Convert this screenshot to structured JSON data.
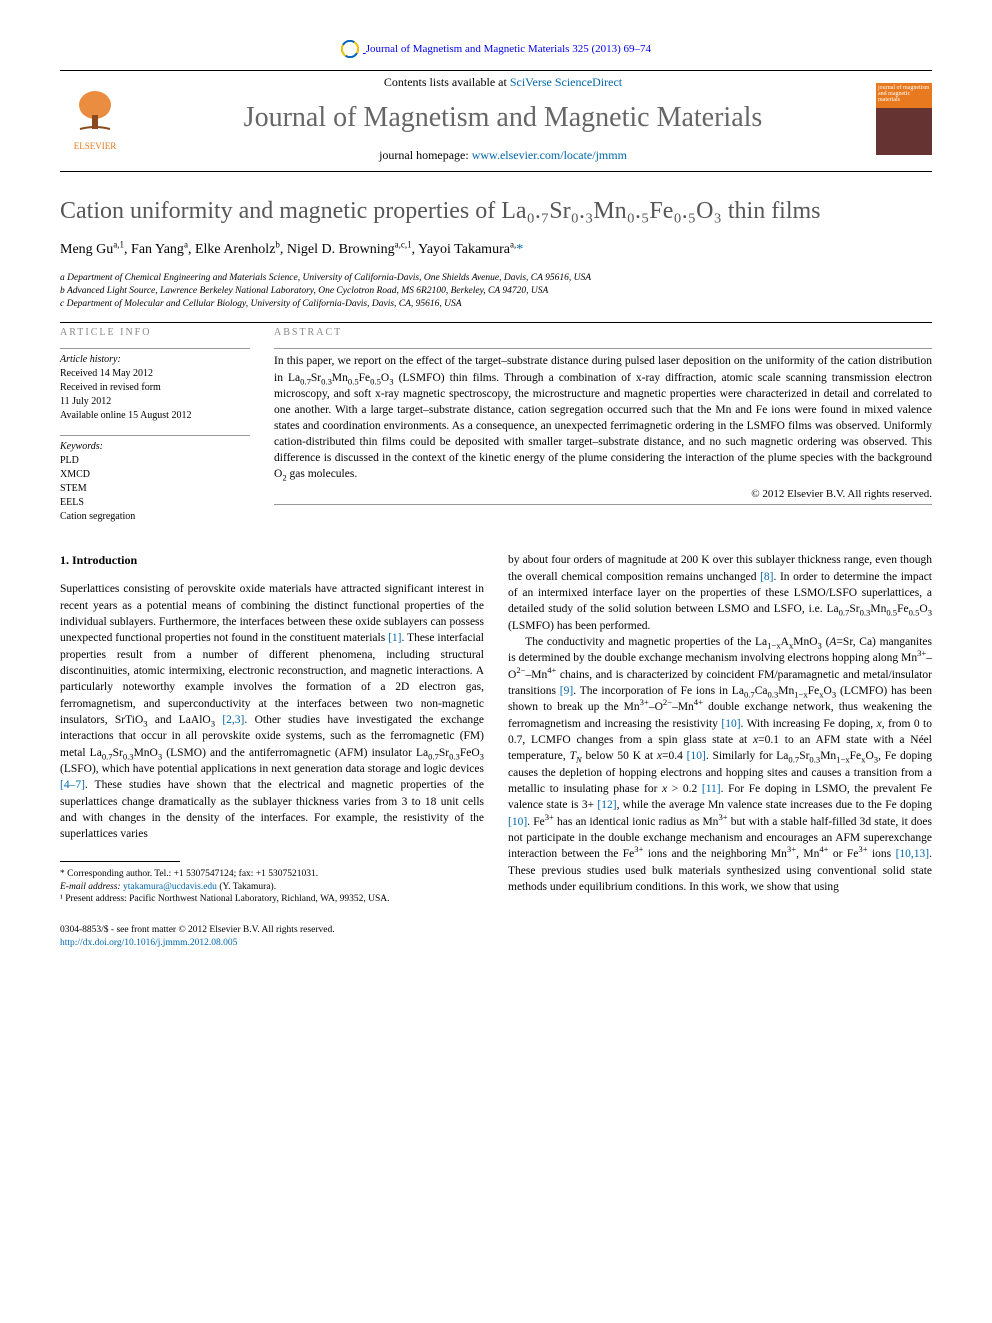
{
  "crossmark": {
    "journal_ref": "Journal of Magnetism and Magnetic Materials 325 (2013) 69–74"
  },
  "masthead": {
    "contents_prefix": "Contents lists available at ",
    "contents_link": "SciVerse ScienceDirect",
    "journal_name": "Journal of Magnetism and Magnetic Materials",
    "homepage_prefix": "journal homepage: ",
    "homepage_link": "www.elsevier.com/locate/jmmm",
    "publisher": "ELSEVIER",
    "cover_text": "journal of magnetism and magnetic materials"
  },
  "title": "Cation uniformity and magnetic properties of La₀.₇Sr₀.₃Mn₀.₅Fe₀.₅O₃ thin films",
  "authors_html": "Meng Gu<sup>a,1</sup>, Fan Yang<sup>a</sup>, Elke Arenholz<sup>b</sup>, Nigel D. Browning<sup>a,c,1</sup>, Yayoi Takamura<sup>a,</sup><a href='#'>*</a>",
  "affiliations": [
    "a Department of Chemical Engineering and Materials Science, University of California-Davis, One Shields Avenue, Davis, CA 95616, USA",
    "b Advanced Light Source, Lawrence Berkeley National Laboratory, One Cyclotron Road, MS 6R2100, Berkeley, CA 94720, USA",
    "c Department of Molecular and Cellular Biology, University of California-Davis, Davis, CA, 95616, USA"
  ],
  "info_heading": "ARTICLE INFO",
  "history": {
    "label": "Article history:",
    "received": "Received 14 May 2012",
    "revised1": "Received in revised form",
    "revised2": "11 July 2012",
    "online": "Available online 15 August 2012"
  },
  "keywords": {
    "label": "Keywords:",
    "items": [
      "PLD",
      "XMCD",
      "STEM",
      "EELS",
      "Cation segregation"
    ]
  },
  "abstract_heading": "ABSTRACT",
  "abstract_html": "In this paper, we report on the effect of the target–substrate distance during pulsed laser deposition on the uniformity of the cation distribution in La<sub>0.7</sub>Sr<sub>0.3</sub>Mn<sub>0.5</sub>Fe<sub>0.5</sub>O<sub>3</sub> (LSMFO) thin films. Through a combination of x-ray diffraction, atomic scale scanning transmission electron microscopy, and soft x-ray magnetic spectroscopy, the microstructure and magnetic properties were characterized in detail and correlated to one another. With a large target–substrate distance, cation segregation occurred such that the Mn and Fe ions were found in mixed valence states and coordination environments. As a consequence, an unexpected ferrimagnetic ordering in the LSMFO films was observed. Uniformly cation-distributed thin films could be deposited with smaller target–substrate distance, and no such magnetic ordering was observed. This difference is discussed in the context of the kinetic energy of the plume considering the interaction of the plume species with the background O<sub>2</sub> gas molecules.",
  "copyright": "© 2012 Elsevier B.V. All rights reserved.",
  "section_heading": "1.  Introduction",
  "left_col_html": "Superlattices consisting of perovskite oxide materials have attracted significant interest in recent years as a potential means of combining the distinct functional properties of the individual sublayers. Furthermore, the interfaces between these oxide sublayers can possess unexpected functional properties not found in the constituent materials <a class='ref-link' href='#'>[1]</a>. These interfacial properties result from a number of different phenomena, including structural discontinuities, atomic intermixing, electronic reconstruction, and magnetic interactions. A particularly noteworthy example involves the formation of a 2D electron gas, ferromagnetism, and superconductivity at the interfaces between two non-magnetic insulators, SrTiO<sub>3</sub> and LaAlO<sub>3</sub> <a class='ref-link' href='#'>[2,3]</a>. Other studies have investigated the exchange interactions that occur in all perovskite oxide systems, such as the ferromagnetic (FM) metal La<sub>0.7</sub>Sr<sub>0.3</sub>MnO<sub>3</sub> (LSMO) and the antiferromagnetic (AFM) insulator La<sub>0.7</sub>Sr<sub>0.3</sub>FeO<sub>3</sub> (LSFO), which have potential applications in next generation data storage and logic devices <a class='ref-link' href='#'>[4–7]</a>. These studies have shown that the electrical and magnetic properties of the superlattices change dramatically as the sublayer thickness varies from 3 to 18 unit cells and with changes in the density of the interfaces. For example, the resistivity of the superlattices varies",
  "right_col_p1_html": "by about four orders of magnitude at 200 K over this sublayer thickness range, even though the overall chemical composition remains unchanged <a class='ref-link' href='#'>[8]</a>. In order to determine the impact of an intermixed interface layer on the properties of these LSMO/LSFO superlattices, a detailed study of the solid solution between LSMO and LSFO, i.e. La<sub>0.7</sub>Sr<sub>0.3</sub>Mn<sub>0.5</sub>Fe<sub>0.5</sub>O<sub>3</sub> (LSMFO) has been performed.",
  "right_col_p2_html": "The conductivity and magnetic properties of the La<sub>1−x</sub>A<sub>x</sub>MnO<sub>3</sub> (<i>A</i>=Sr, Ca) manganites is determined by the double exchange mechanism involving electrons hopping along Mn<sup>3+</sup>–O<sup>2−</sup>–Mn<sup>4+</sup> chains, and is characterized by coincident FM/paramagnetic and metal/insulator transitions <a class='ref-link' href='#'>[9]</a>. The incorporation of Fe ions in La<sub>0.7</sub>Ca<sub>0.3</sub>Mn<sub>1−x</sub>Fe<sub>x</sub>O<sub>3</sub> (LCMFO) has been shown to break up the Mn<sup>3+</sup>–O<sup>2−</sup>–Mn<sup>4+</sup> double exchange network, thus weakening the ferromagnetism and increasing the resistivity <a class='ref-link' href='#'>[10]</a>. With increasing Fe doping, <i>x</i>, from 0 to 0.7, LCMFO changes from a spin glass state at <i>x</i>=0.1 to an AFM state with a Néel temperature, <i>T<sub>N</sub></i> below 50 K at <i>x</i>=0.4 <a class='ref-link' href='#'>[10]</a>. Similarly for La<sub>0.7</sub>Sr<sub>0.3</sub>Mn<sub>1−x</sub>Fe<sub>x</sub>O<sub>3</sub>, Fe doping causes the depletion of hopping electrons and hopping sites and causes a transition from a metallic to insulating phase for <i>x</i> > 0.2 <a class='ref-link' href='#'>[11]</a>. For Fe doping in LSMO, the prevalent Fe valence state is 3+ <a class='ref-link' href='#'>[12]</a>, while the average Mn valence state increases due to the Fe doping <a class='ref-link' href='#'>[10]</a>. Fe<sup>3+</sup> has an identical ionic radius as Mn<sup>3+</sup> but with a stable half-filled 3d state, it does not participate in the double exchange mechanism and encourages an AFM superexchange interaction between the Fe<sup>3+</sup> ions and the neighboring Mn<sup>3+</sup>, Mn<sup>4+</sup> or Fe<sup>3+</sup> ions <a class='ref-link' href='#'>[10,13]</a>. These previous studies used bulk materials synthesized using conventional solid state methods under equilibrium conditions. In this work, we show that using",
  "footnotes": {
    "corr": "* Corresponding author. Tel.: +1 5307547124; fax: +1 5307521031.",
    "email_label": "E-mail address: ",
    "email": "ytakamura@ucdavis.edu",
    "email_who": " (Y. Takamura).",
    "note1": "¹ Present address: Pacific Northwest National Laboratory, Richland, WA, 99352, USA."
  },
  "bottom": {
    "issn": "0304-8853/$ - see front matter © 2012 Elsevier B.V. All rights reserved.",
    "doi": "http://dx.doi.org/10.1016/j.jmmm.2012.08.005"
  },
  "colors": {
    "link": "#0066aa",
    "elsevier_orange": "#e8791e",
    "gray_heading": "#575757"
  }
}
